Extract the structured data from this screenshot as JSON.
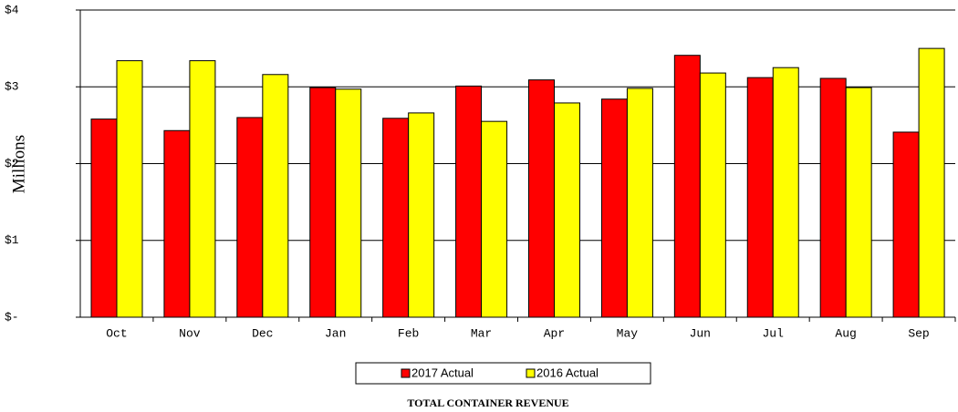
{
  "chart_data": {
    "type": "bar",
    "title": "TOTAL CONTAINER REVENUE",
    "y_label": "Millions",
    "categories": [
      "Oct",
      "Nov",
      "Dec",
      "Jan",
      "Feb",
      "Mar",
      "Apr",
      "May",
      "Jun",
      "Jul",
      "Aug",
      "Sep"
    ],
    "series": [
      {
        "name": "2017 Actual",
        "color": "#ff0000",
        "values": [
          2.58,
          2.43,
          2.6,
          2.99,
          2.59,
          3.01,
          3.09,
          2.84,
          3.41,
          3.12,
          3.11,
          2.41
        ]
      },
      {
        "name": "2016 Actual",
        "color": "#ffff00",
        "values": [
          3.34,
          3.34,
          3.16,
          2.97,
          2.66,
          2.55,
          2.79,
          2.98,
          3.18,
          3.25,
          2.99,
          3.5
        ]
      }
    ],
    "ylim": [
      0,
      4
    ],
    "yticks": [
      {
        "value": 0,
        "label": "$-"
      },
      {
        "value": 1,
        "label": "$1"
      },
      {
        "value": 2,
        "label": "$2"
      },
      {
        "value": 3,
        "label": "$3"
      },
      {
        "value": 4,
        "label": "$4"
      }
    ],
    "grid": true
  }
}
